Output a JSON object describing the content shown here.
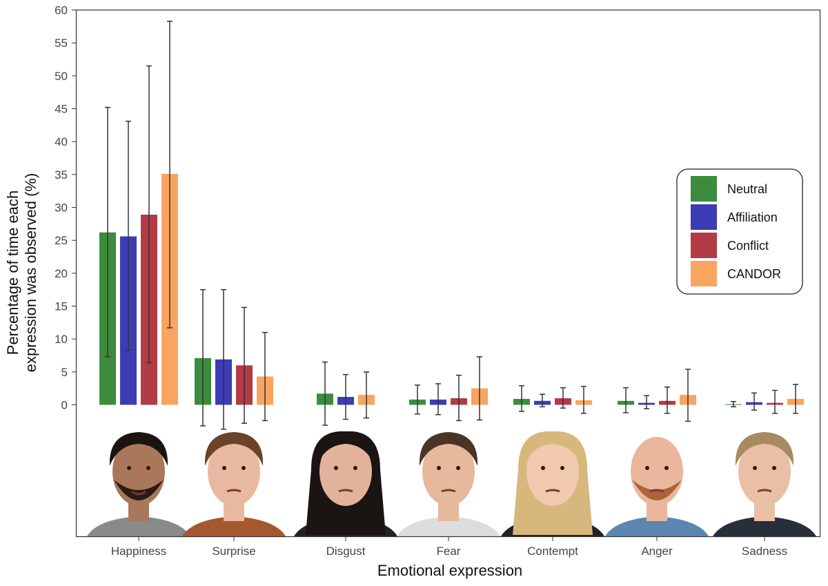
{
  "chart_data": {
    "type": "bar",
    "xlabel": "Emotional expression",
    "ylabel": "Percentage of time each\nexpression was observed (%)",
    "ylim": [
      0,
      60
    ],
    "yticks": [
      0,
      5,
      10,
      15,
      20,
      25,
      30,
      35,
      40,
      45,
      50,
      55,
      60
    ],
    "grid": false,
    "legend_position": "right",
    "categories": [
      "Happiness",
      "Surprise",
      "Disgust",
      "Fear",
      "Contempt",
      "Anger",
      "Sadness"
    ],
    "series": [
      {
        "name": "Neutral",
        "color": "#3d8b3d",
        "values": [
          26.2,
          7.1,
          1.7,
          0.8,
          0.9,
          0.6,
          0.1
        ],
        "error_upper": [
          45.2,
          17.5,
          6.5,
          3.0,
          2.9,
          2.6,
          0.5
        ],
        "error_lower": [
          7.3,
          -3.2,
          -3.1,
          -1.4,
          -1.0,
          -1.2,
          -0.3
        ]
      },
      {
        "name": "Affiliation",
        "color": "#3c3cb4",
        "values": [
          25.6,
          6.9,
          1.2,
          0.8,
          0.6,
          0.3,
          0.4
        ],
        "error_upper": [
          43.1,
          17.5,
          4.6,
          3.2,
          1.6,
          1.4,
          1.8
        ],
        "error_lower": [
          8.3,
          -3.7,
          -2.2,
          -1.5,
          -0.3,
          -0.6,
          -0.8
        ]
      },
      {
        "name": "Conflict",
        "color": "#b23b45",
        "values": [
          28.9,
          6.0,
          null,
          1.0,
          1.0,
          0.6,
          0.3
        ],
        "error_upper": [
          51.5,
          14.8,
          null,
          4.5,
          2.6,
          2.7,
          2.2
        ],
        "error_lower": [
          6.4,
          -2.8,
          null,
          -2.4,
          -0.5,
          -1.3,
          -1.3
        ]
      },
      {
        "name": "CANDOR",
        "color": "#f9a45f",
        "values": [
          35.1,
          4.3,
          1.5,
          2.5,
          0.7,
          1.5,
          0.9
        ],
        "error_upper": [
          58.3,
          11.0,
          5.0,
          7.3,
          2.8,
          5.4,
          3.1
        ],
        "error_lower": [
          11.7,
          -2.4,
          -2.0,
          -2.3,
          -1.3,
          -2.5,
          -1.3
        ]
      }
    ]
  },
  "face_images": [
    "happiness-face",
    "surprise-face",
    "disgust-face",
    "fear-face",
    "contempt-face",
    "anger-face",
    "sadness-face"
  ]
}
